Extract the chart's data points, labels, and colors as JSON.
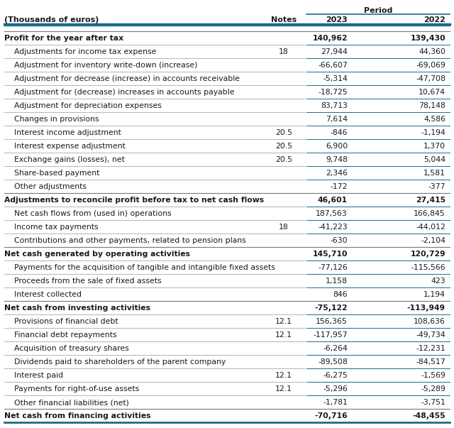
{
  "title": "Period",
  "col_header": "(Thousands of euros)",
  "col_notes": "Notes",
  "col_2023": "2023",
  "col_2022": "2022",
  "teal": "#1A6B8A",
  "bg_color": "#FFFFFF",
  "text_color": "#1A1A1A",
  "figw": 6.4,
  "figh": 6.03,
  "rows": [
    {
      "label": "Profit for the year after tax",
      "notes": "",
      "v2023": "140,962",
      "v2022": "139,430",
      "style": "bold"
    },
    {
      "label": "Adjustments for income tax expense",
      "notes": "18",
      "v2023": "27,944",
      "v2022": "44,360",
      "style": "indent"
    },
    {
      "label": "Adjustment for inventory write-down (increase)",
      "notes": "",
      "v2023": "-66,607",
      "v2022": "-69,069",
      "style": "indent"
    },
    {
      "label": "Adjustment for decrease (increase) in accounts receivable",
      "notes": "",
      "v2023": "-5,314",
      "v2022": "-47,708",
      "style": "indent"
    },
    {
      "label": "Adjustment for (decrease) increases in accounts payable",
      "notes": "",
      "v2023": "-18,725",
      "v2022": "10,674",
      "style": "indent"
    },
    {
      "label": "Adjustment for depreciation expenses",
      "notes": "",
      "v2023": "83,713",
      "v2022": "78,148",
      "style": "indent"
    },
    {
      "label": "Changes in provisions",
      "notes": "",
      "v2023": "7,614",
      "v2022": "4,586",
      "style": "indent"
    },
    {
      "label": "Interest income adjustment",
      "notes": "20.5",
      "v2023": "-846",
      "v2022": "-1,194",
      "style": "indent"
    },
    {
      "label": "Interest expense adjustment",
      "notes": "20.5",
      "v2023": "6,900",
      "v2022": "1,370",
      "style": "indent"
    },
    {
      "label": "Exchange gains (losses), net",
      "notes": "20.5",
      "v2023": "9,748",
      "v2022": "5,044",
      "style": "indent"
    },
    {
      "label": "Share-based payment",
      "notes": "",
      "v2023": "2,346",
      "v2022": "1,581",
      "style": "indent"
    },
    {
      "label": "Other adjustments",
      "notes": "",
      "v2023": "-172",
      "v2022": "-377",
      "style": "indent"
    },
    {
      "label": "Adjustments to reconcile profit before tax to net cash flows",
      "notes": "",
      "v2023": "46,601",
      "v2022": "27,415",
      "style": "bold"
    },
    {
      "label": "Net cash flows from (used in) operations",
      "notes": "",
      "v2023": "187,563",
      "v2022": "166,845",
      "style": "indent"
    },
    {
      "label": "Income tax payments",
      "notes": "18",
      "v2023": "-41,223",
      "v2022": "-44,012",
      "style": "indent"
    },
    {
      "label": "Contributions and other payments, related to pension plans",
      "notes": "",
      "v2023": "-630",
      "v2022": "-2,104",
      "style": "indent"
    },
    {
      "label": "Net cash generated by operating activities",
      "notes": "",
      "v2023": "145,710",
      "v2022": "120,729",
      "style": "bold"
    },
    {
      "label": "Payments for the acquisition of tangible and intangible fixed assets",
      "notes": "",
      "v2023": "-77,126",
      "v2022": "-115,566",
      "style": "indent"
    },
    {
      "label": "Proceeds from the sale of fixed assets",
      "notes": "",
      "v2023": "1,158",
      "v2022": "423",
      "style": "indent"
    },
    {
      "label": "Interest collected",
      "notes": "",
      "v2023": "846",
      "v2022": "1,194",
      "style": "indent"
    },
    {
      "label": "Net cash from investing activities",
      "notes": "",
      "v2023": "-75,122",
      "v2022": "-113,949",
      "style": "bold"
    },
    {
      "label": "Provisions of financial debt",
      "notes": "12.1",
      "v2023": "156,365",
      "v2022": "108,636",
      "style": "indent"
    },
    {
      "label": "Financial debt repayments",
      "notes": "12.1",
      "v2023": "-117,957",
      "v2022": "-49,734",
      "style": "indent"
    },
    {
      "label": "Acquisition of treasury shares",
      "notes": "",
      "v2023": "-6,264",
      "v2022": "-12,231",
      "style": "indent"
    },
    {
      "label": "Dividends paid to shareholders of the parent company",
      "notes": "",
      "v2023": "-89,508",
      "v2022": "-84,517",
      "style": "indent"
    },
    {
      "label": "Interest paid",
      "notes": "12.1",
      "v2023": "-6,275",
      "v2022": "-1,569",
      "style": "indent"
    },
    {
      "label": "Payments for right-of-use assets",
      "notes": "12.1",
      "v2023": "-5,296",
      "v2022": "-5,289",
      "style": "indent"
    },
    {
      "label": "Other financial liabilities (net)",
      "notes": "",
      "v2023": "-1,781",
      "v2022": "-3,751",
      "style": "indent"
    },
    {
      "label": "Net cash from financing activities",
      "notes": "",
      "v2023": "-70,716",
      "v2022": "-48,455",
      "style": "bold"
    }
  ]
}
